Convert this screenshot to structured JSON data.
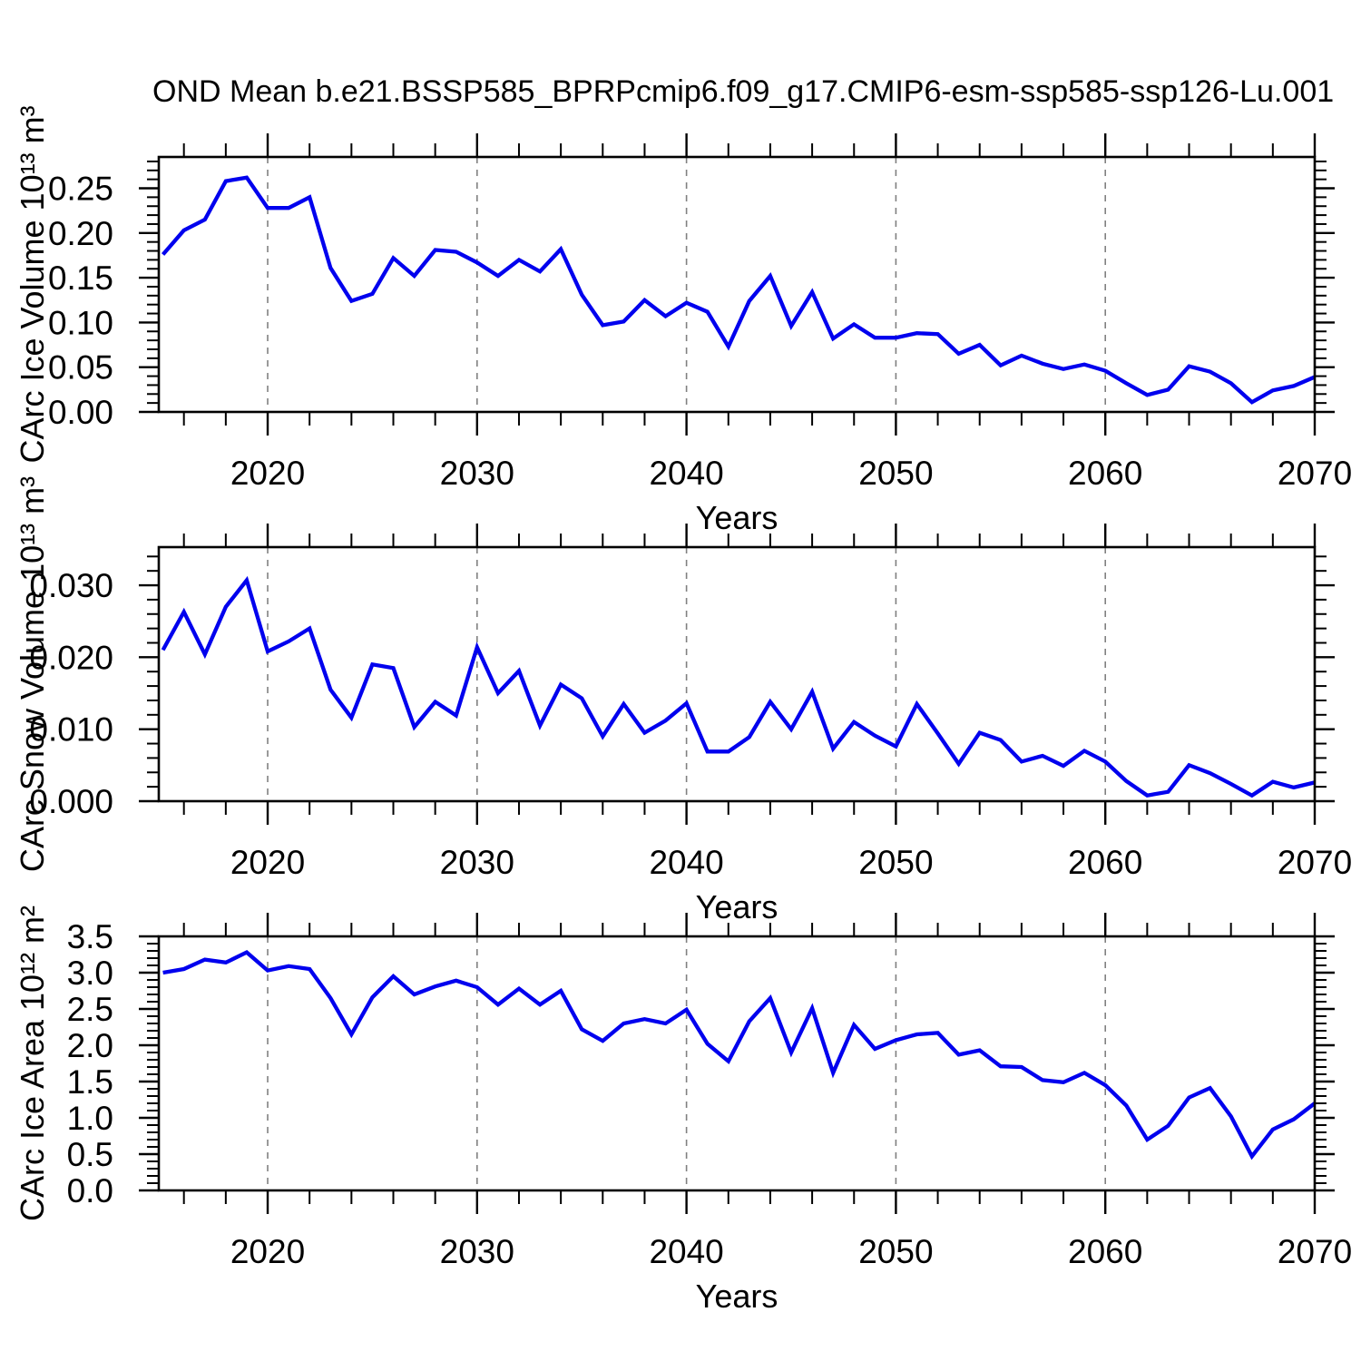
{
  "chart_data": {
    "type": "line",
    "title": "OND Mean b.e21.BSSP585_BPRPcmip6.f09_g17.CMIP6-esm-ssp585-ssp126-Lu.001",
    "xlabel": "Years",
    "line_color": "#0000ee",
    "grid_color": "#808080",
    "frame_color": "#000000",
    "xlim": [
      2014.8,
      2070
    ],
    "x_major_ticks": [
      2020,
      2030,
      2040,
      2050,
      2060,
      2070
    ],
    "x_tick_labels": [
      "2020",
      "2030",
      "2040",
      "2050",
      "2060",
      "2070"
    ],
    "x_minor_step": 2,
    "x_gridlines": [
      2020,
      2030,
      2040,
      2050,
      2060
    ],
    "grid_style": "dashed",
    "legend": "none",
    "x": [
      2015,
      2016,
      2017,
      2018,
      2019,
      2020,
      2021,
      2022,
      2023,
      2024,
      2025,
      2026,
      2027,
      2028,
      2029,
      2030,
      2031,
      2032,
      2033,
      2034,
      2035,
      2036,
      2037,
      2038,
      2039,
      2040,
      2041,
      2042,
      2043,
      2044,
      2045,
      2046,
      2047,
      2048,
      2049,
      2050,
      2051,
      2052,
      2053,
      2054,
      2055,
      2056,
      2057,
      2058,
      2059,
      2060,
      2061,
      2062,
      2063,
      2064,
      2065,
      2066,
      2067,
      2068,
      2069,
      2070
    ],
    "panels": [
      {
        "id": "ice-volume",
        "ylabel": "CArc Ice Volume 10¹³ m³",
        "ylim": [
          0,
          0.285
        ],
        "ytick_values": [
          0,
          0.05,
          0.1,
          0.15,
          0.2,
          0.25
        ],
        "ytick_labels": [
          "0.00",
          "0.05",
          "0.10",
          "0.15",
          "0.20",
          "0.25"
        ],
        "y_major_step": 0.05,
        "y_minor_step": 0.01,
        "values": [
          0.176,
          0.203,
          0.215,
          0.258,
          0.262,
          0.228,
          0.228,
          0.24,
          0.161,
          0.124,
          0.132,
          0.172,
          0.152,
          0.181,
          0.179,
          0.167,
          0.152,
          0.17,
          0.157,
          0.182,
          0.131,
          0.097,
          0.101,
          0.125,
          0.107,
          0.122,
          0.112,
          0.073,
          0.124,
          0.152,
          0.096,
          0.134,
          0.082,
          0.098,
          0.083,
          0.083,
          0.088,
          0.087,
          0.065,
          0.075,
          0.052,
          0.063,
          0.054,
          0.048,
          0.053,
          0.046,
          0.032,
          0.019,
          0.025,
          0.051,
          0.045,
          0.032,
          0.011,
          0.024,
          0.029,
          0.039
        ]
      },
      {
        "id": "snow-volume",
        "ylabel": "CArc Snow Volume 10¹³ m³",
        "ylim": [
          0,
          0.0353
        ],
        "ytick_values": [
          0,
          0.01,
          0.02,
          0.03
        ],
        "ytick_labels": [
          "0.000",
          "0.010",
          "0.020",
          "0.030"
        ],
        "y_major_step": 0.01,
        "y_minor_step": 0.002,
        "values": [
          0.021,
          0.0263,
          0.0204,
          0.027,
          0.0307,
          0.0208,
          0.0222,
          0.024,
          0.0155,
          0.0116,
          0.019,
          0.0185,
          0.0103,
          0.0138,
          0.0119,
          0.0214,
          0.015,
          0.0181,
          0.0105,
          0.0162,
          0.0143,
          0.009,
          0.0135,
          0.0095,
          0.0112,
          0.0136,
          0.0069,
          0.0069,
          0.0089,
          0.0138,
          0.01,
          0.0152,
          0.0073,
          0.011,
          0.0091,
          0.0076,
          0.0135,
          0.0094,
          0.0052,
          0.0095,
          0.0085,
          0.0055,
          0.0063,
          0.0049,
          0.007,
          0.0055,
          0.0028,
          0.0008,
          0.0013,
          0.005,
          0.0039,
          0.0024,
          0.0008,
          0.0027,
          0.0019,
          0.0026
        ]
      },
      {
        "id": "ice-area",
        "ylabel": "CArc Ice Area 10¹² m²",
        "ylim": [
          0,
          3.5
        ],
        "ytick_values": [
          0,
          0.5,
          1.0,
          1.5,
          2.0,
          2.5,
          3.0,
          3.5
        ],
        "ytick_labels": [
          "0.0",
          "0.5",
          "1.0",
          "1.5",
          "2.0",
          "2.5",
          "3.0",
          "3.5"
        ],
        "y_major_step": 0.5,
        "y_minor_step": 0.1,
        "values": [
          3.0,
          3.05,
          3.18,
          3.14,
          3.28,
          3.03,
          3.09,
          3.05,
          2.65,
          2.15,
          2.66,
          2.95,
          2.7,
          2.81,
          2.89,
          2.8,
          2.56,
          2.78,
          2.56,
          2.75,
          2.22,
          2.06,
          2.3,
          2.36,
          2.3,
          2.49,
          2.02,
          1.78,
          2.33,
          2.65,
          1.9,
          2.51,
          1.62,
          2.28,
          1.95,
          2.07,
          2.15,
          2.17,
          1.87,
          1.93,
          1.71,
          1.7,
          1.52,
          1.49,
          1.62,
          1.45,
          1.17,
          0.7,
          0.89,
          1.28,
          1.41,
          1.02,
          0.47,
          0.84,
          0.98,
          1.2
        ]
      }
    ]
  }
}
